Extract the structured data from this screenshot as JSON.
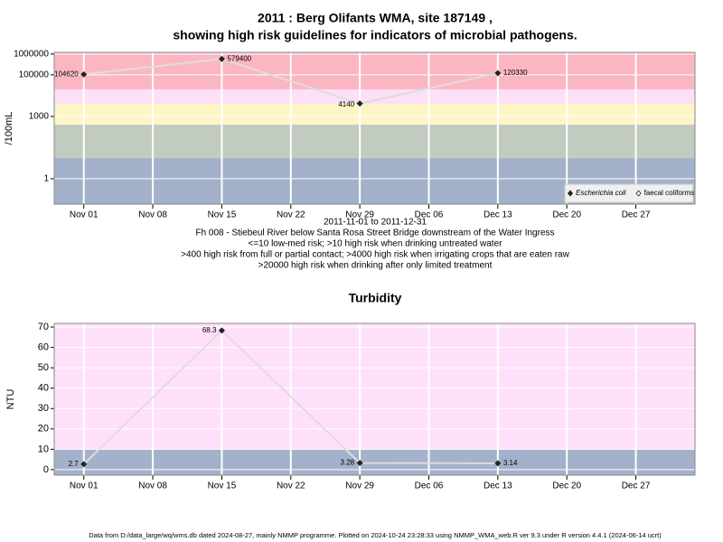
{
  "chart_data": [
    {
      "type": "line",
      "title": [
        "2011 : Berg Olifants WMA, site 187149 ,",
        "showing high risk guidelines for indicators of microbial pathogens."
      ],
      "y_label": "/100mL",
      "notes": [
        "2011-11-01 to 2011-12-31",
        "Fh 008 - Stiebeul River below Santa Rosa Street Bridge downstream of the Water Ingress",
        "<=10 low-med risk; >10 high risk when drinking untreated water",
        ">400 high risk from full or partial contact; >4000 high risk when irrigating crops that are eaten raw",
        ">20000 high risk when drinking after only limited treatment"
      ],
      "log_y": true,
      "x": [
        "2011-11-01",
        "2011-11-15",
        "2011-11-29",
        "2011-12-13"
      ],
      "series": [
        {
          "name": "Escherichia coli",
          "color": "#222222",
          "line_color": "#dddddd",
          "values": [
            104620,
            579400,
            4140,
            120330
          ]
        },
        {
          "name": "faecal coliforms",
          "color": "#222222",
          "line_color": "#dddddd",
          "values": [
            null,
            null,
            null,
            null
          ]
        }
      ],
      "xlim": [
        "2011-10-29",
        "2012-01-02"
      ],
      "xticks": [
        {
          "value": "2011-11-01",
          "label": "Nov 01"
        },
        {
          "value": "2011-11-08",
          "label": "Nov 08"
        },
        {
          "value": "2011-11-15",
          "label": "Nov 15"
        },
        {
          "value": "2011-11-22",
          "label": "Nov 22"
        },
        {
          "value": "2011-11-29",
          "label": "Nov 29"
        },
        {
          "value": "2011-12-06",
          "label": "Dec 06"
        },
        {
          "value": "2011-12-13",
          "label": "Dec 13"
        },
        {
          "value": "2011-12-20",
          "label": "Dec 20"
        },
        {
          "value": "2011-12-27",
          "label": "Dec 27"
        }
      ],
      "ylim": [
        0.06,
        1200000
      ],
      "yticks": [
        1,
        1000,
        100000,
        1000000
      ],
      "thresholds": [
        10,
        400,
        4000,
        20000
      ],
      "band_colors": [
        "#a3b2ca",
        "#c2cbbf",
        "#fcf6c6",
        "#fde0f6",
        "#fbb6c2"
      ],
      "grid": true,
      "legend": "bottom-right"
    },
    {
      "type": "line",
      "title": "Turbidity",
      "y_label": "NTU",
      "x": [
        "2011-11-01",
        "2011-11-15",
        "2011-11-29",
        "2011-12-13"
      ],
      "series": [
        {
          "name": "Turbidity",
          "color": "#222222",
          "line_color": "#dddddd",
          "values": [
            2.7,
            68.3,
            3.28,
            3.14
          ]
        }
      ],
      "xlim": [
        "2011-10-29",
        "2012-01-02"
      ],
      "xticks": [
        {
          "value": "2011-11-01",
          "label": "Nov 01"
        },
        {
          "value": "2011-11-08",
          "label": "Nov 08"
        },
        {
          "value": "2011-11-15",
          "label": "Nov 15"
        },
        {
          "value": "2011-11-22",
          "label": "Nov 22"
        },
        {
          "value": "2011-11-29",
          "label": "Nov 29"
        },
        {
          "value": "2011-12-06",
          "label": "Dec 06"
        },
        {
          "value": "2011-12-13",
          "label": "Dec 13"
        },
        {
          "value": "2011-12-20",
          "label": "Dec 20"
        },
        {
          "value": "2011-12-27",
          "label": "Dec 27"
        }
      ],
      "ylim": [
        -2.7,
        71.8
      ],
      "yticks": [
        0,
        10,
        20,
        30,
        40,
        50,
        60,
        70
      ],
      "thresholds": [
        10
      ],
      "band_colors": [
        "#a3b2ca",
        "#ffe0fa"
      ],
      "grid": true
    }
  ],
  "footer": "Data from D:/data_large/wq/wms.db dated 2024-08-27, mainly NMMP programme. Plotted on 2024-10-24 23:28:33 using NMMP_WMA_web.R ver 9.3 under R version 4.4.1 (2024-06-14 ucrt)"
}
